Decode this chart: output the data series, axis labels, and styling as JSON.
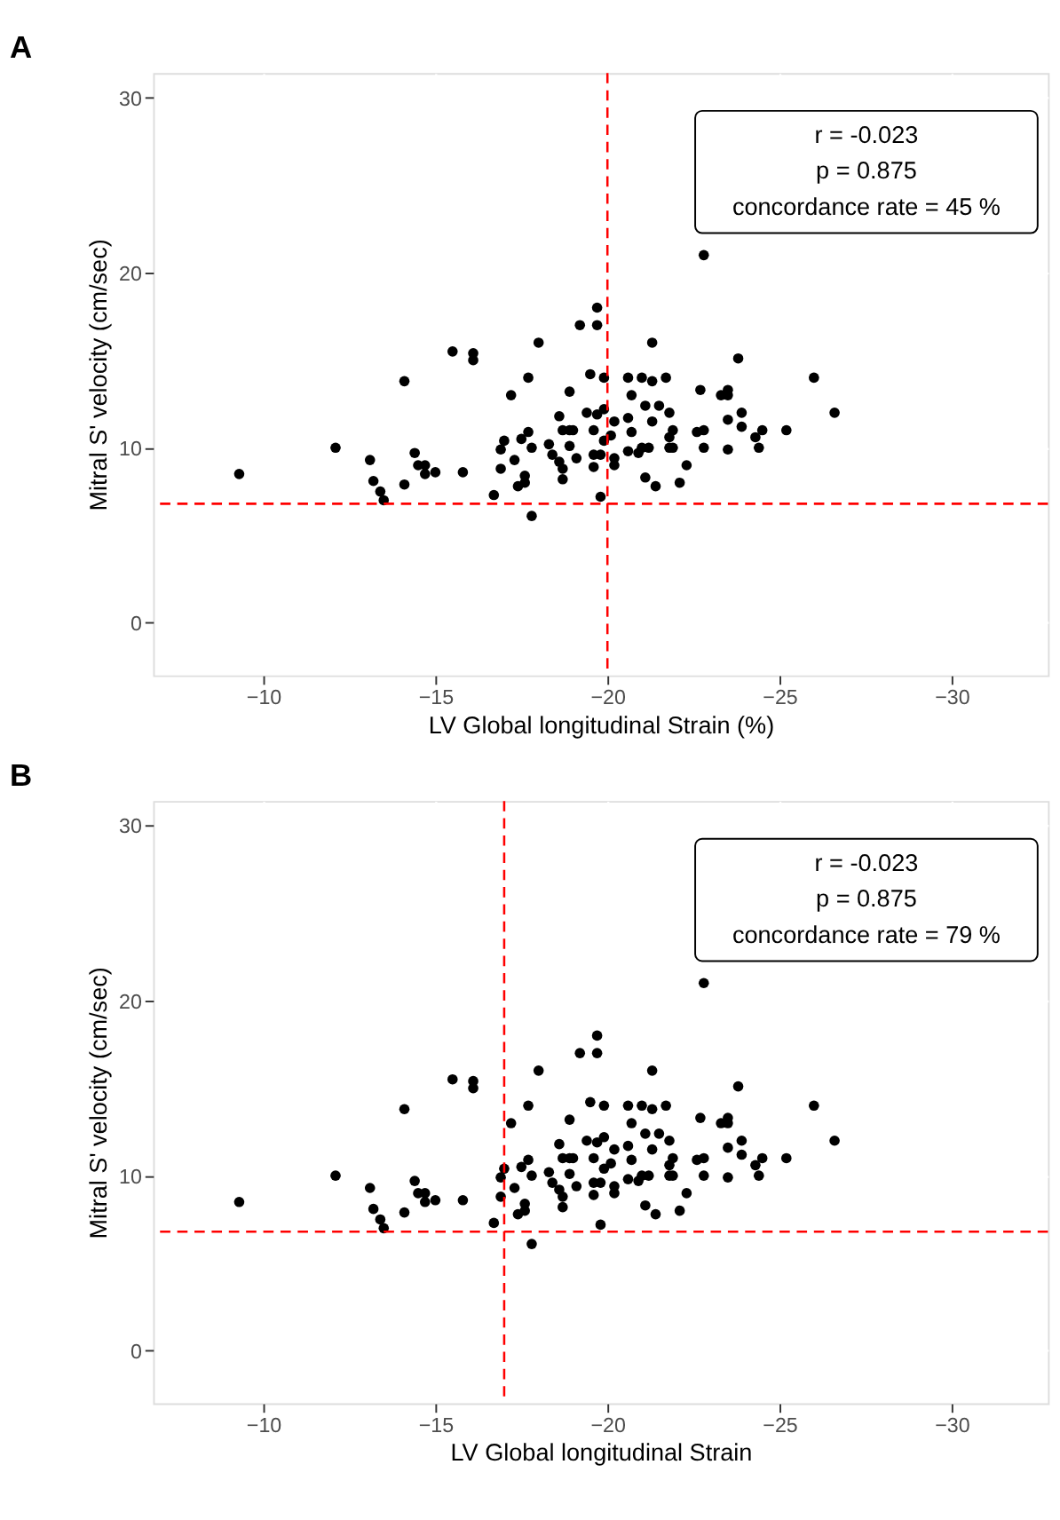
{
  "chart_data": [
    {
      "type": "scatter",
      "title": "A",
      "xlabel": "LV Global longitudinal Strain (%)",
      "ylabel": "Mitral S' velocity (cm/sec)",
      "xlim": [
        -6.8,
        -32.8
      ],
      "ylim": [
        -3,
        31.4
      ],
      "xticks": [
        -10,
        -15,
        -20,
        -25,
        -30
      ],
      "yticks": [
        0,
        10,
        20,
        30
      ],
      "grid": true,
      "annotations": [
        "r = -0.023",
        "p = 0.875",
        "concordance rate = 45 %"
      ],
      "ref_lines": [
        {
          "axis": "x",
          "value": -20,
          "color": "#ff0000",
          "line_style": "dashed"
        },
        {
          "axis": "y",
          "value": 6.8,
          "color": "#ff0000",
          "line_style": "dashed"
        }
      ],
      "series": [
        {
          "color": "#000000",
          "x": [
            -9.3,
            -12.1,
            -13.1,
            -13.2,
            -13.4,
            -13.5,
            -14.1,
            -14.1,
            -14.4,
            -14.5,
            -14.7,
            -14.7,
            -15.0,
            -15.5,
            -16.1,
            -16.1,
            -15.8,
            -16.7,
            -16.9,
            -16.9,
            -17.0,
            -17.2,
            -17.3,
            -17.4,
            -17.5,
            -17.6,
            -17.6,
            -17.7,
            -17.7,
            -17.8,
            -17.8,
            -18.0,
            -18.3,
            -18.4,
            -18.6,
            -18.6,
            -18.7,
            -18.7,
            -18.7,
            -18.9,
            -18.9,
            -18.9,
            -19.0,
            -19.1,
            -19.2,
            -19.4,
            -19.5,
            -19.6,
            -19.6,
            -19.6,
            -19.7,
            -19.7,
            -19.7,
            -19.8,
            -19.8,
            -19.9,
            -19.9,
            -19.9,
            -20.2,
            -20.2,
            -20.2,
            -20.1,
            -22.8,
            -21.3,
            -23.8,
            -20.6,
            -21.0,
            -21.3,
            -21.7,
            -22.7,
            -23.3,
            -23.5,
            -23.5,
            -26.0,
            -20.7,
            -21.1,
            -21.5,
            -21.8,
            -20.6,
            -21.3,
            -23.9,
            -26.6,
            -23.5,
            -20.7,
            -21.9,
            -21.8,
            -22.6,
            -22.8,
            -23.9,
            -24.5,
            -25.2,
            -24.3,
            -24.4,
            -23.5,
            -22.8,
            -21.8,
            -21.9,
            -21.0,
            -21.2,
            -20.9,
            -20.6,
            -22.3,
            -21.1,
            -21.4,
            -22.1
          ],
          "values": [
            8.5,
            10.0,
            9.3,
            8.1,
            7.5,
            7.0,
            13.8,
            7.9,
            9.7,
            9.0,
            9.0,
            8.5,
            8.6,
            15.5,
            15.4,
            15.0,
            8.6,
            7.3,
            8.8,
            9.9,
            10.4,
            13.0,
            9.3,
            7.8,
            10.5,
            8.4,
            8.0,
            10.9,
            14.0,
            10.0,
            6.1,
            16.0,
            10.2,
            9.6,
            11.8,
            9.2,
            8.8,
            8.2,
            11.0,
            13.2,
            10.1,
            11.0,
            11.0,
            9.4,
            17.0,
            12.0,
            14.2,
            11.0,
            9.6,
            8.9,
            18.0,
            17.0,
            11.9,
            9.6,
            7.2,
            14.0,
            10.4,
            12.2,
            11.5,
            9.4,
            9.0,
            10.7,
            21.0,
            16.0,
            15.1,
            14.0,
            14.0,
            13.8,
            14.0,
            13.3,
            13.0,
            13.3,
            13.0,
            14.0,
            13.0,
            12.4,
            12.4,
            12.0,
            11.7,
            11.5,
            12.0,
            12.0,
            11.6,
            10.9,
            11.0,
            10.6,
            10.9,
            11.0,
            11.2,
            11.0,
            11.0,
            10.6,
            10.0,
            9.9,
            10.0,
            10.0,
            10.0,
            10.0,
            10.0,
            9.7,
            9.8,
            9.0,
            8.3,
            7.8,
            8.0
          ]
        }
      ]
    },
    {
      "type": "scatter",
      "title": "B",
      "xlabel": "LV Global longitudinal Strain",
      "ylabel": "Mitral S' velocity (cm/sec)",
      "xlim": [
        -6.8,
        -32.8
      ],
      "ylim": [
        -3,
        31.4
      ],
      "xticks": [
        -10,
        -15,
        -20,
        -25,
        -30
      ],
      "yticks": [
        0,
        10,
        20,
        30
      ],
      "grid": true,
      "annotations": [
        "r = -0.023",
        "p = 0.875",
        "concordance rate = 79 %"
      ],
      "ref_lines": [
        {
          "axis": "x",
          "value": -17,
          "color": "#ff0000",
          "line_style": "dashed"
        },
        {
          "axis": "y",
          "value": 6.8,
          "color": "#ff0000",
          "line_style": "dashed"
        }
      ],
      "series": [
        {
          "color": "#000000",
          "x": [
            -9.3,
            -12.1,
            -13.1,
            -13.2,
            -13.4,
            -13.5,
            -14.1,
            -14.1,
            -14.4,
            -14.5,
            -14.7,
            -14.7,
            -15.0,
            -15.5,
            -16.1,
            -16.1,
            -15.8,
            -16.7,
            -16.9,
            -16.9,
            -17.0,
            -17.2,
            -17.3,
            -17.4,
            -17.5,
            -17.6,
            -17.6,
            -17.7,
            -17.7,
            -17.8,
            -17.8,
            -18.0,
            -18.3,
            -18.4,
            -18.6,
            -18.6,
            -18.7,
            -18.7,
            -18.7,
            -18.9,
            -18.9,
            -18.9,
            -19.0,
            -19.1,
            -19.2,
            -19.4,
            -19.5,
            -19.6,
            -19.6,
            -19.6,
            -19.7,
            -19.7,
            -19.7,
            -19.8,
            -19.8,
            -19.9,
            -19.9,
            -19.9,
            -20.2,
            -20.2,
            -20.2,
            -20.1,
            -22.8,
            -21.3,
            -23.8,
            -20.6,
            -21.0,
            -21.3,
            -21.7,
            -22.7,
            -23.3,
            -23.5,
            -23.5,
            -26.0,
            -20.7,
            -21.1,
            -21.5,
            -21.8,
            -20.6,
            -21.3,
            -23.9,
            -26.6,
            -23.5,
            -20.7,
            -21.9,
            -21.8,
            -22.6,
            -22.8,
            -23.9,
            -24.5,
            -25.2,
            -24.3,
            -24.4,
            -23.5,
            -22.8,
            -21.8,
            -21.9,
            -21.0,
            -21.2,
            -20.9,
            -20.6,
            -22.3,
            -21.1,
            -21.4,
            -22.1
          ],
          "values": [
            8.5,
            10.0,
            9.3,
            8.1,
            7.5,
            7.0,
            13.8,
            7.9,
            9.7,
            9.0,
            9.0,
            8.5,
            8.6,
            15.5,
            15.4,
            15.0,
            8.6,
            7.3,
            8.8,
            9.9,
            10.4,
            13.0,
            9.3,
            7.8,
            10.5,
            8.4,
            8.0,
            10.9,
            14.0,
            10.0,
            6.1,
            16.0,
            10.2,
            9.6,
            11.8,
            9.2,
            8.8,
            8.2,
            11.0,
            13.2,
            10.1,
            11.0,
            11.0,
            9.4,
            17.0,
            12.0,
            14.2,
            11.0,
            9.6,
            8.9,
            18.0,
            17.0,
            11.9,
            9.6,
            7.2,
            14.0,
            10.4,
            12.2,
            11.5,
            9.4,
            9.0,
            10.7,
            21.0,
            16.0,
            15.1,
            14.0,
            14.0,
            13.8,
            14.0,
            13.3,
            13.0,
            13.3,
            13.0,
            14.0,
            13.0,
            12.4,
            12.4,
            12.0,
            11.7,
            11.5,
            12.0,
            12.0,
            11.6,
            10.9,
            11.0,
            10.6,
            10.9,
            11.0,
            11.2,
            11.0,
            11.0,
            10.6,
            10.0,
            9.9,
            10.0,
            10.0,
            10.0,
            10.0,
            10.0,
            9.7,
            9.8,
            9.0,
            8.3,
            7.8,
            8.0
          ]
        }
      ]
    }
  ]
}
